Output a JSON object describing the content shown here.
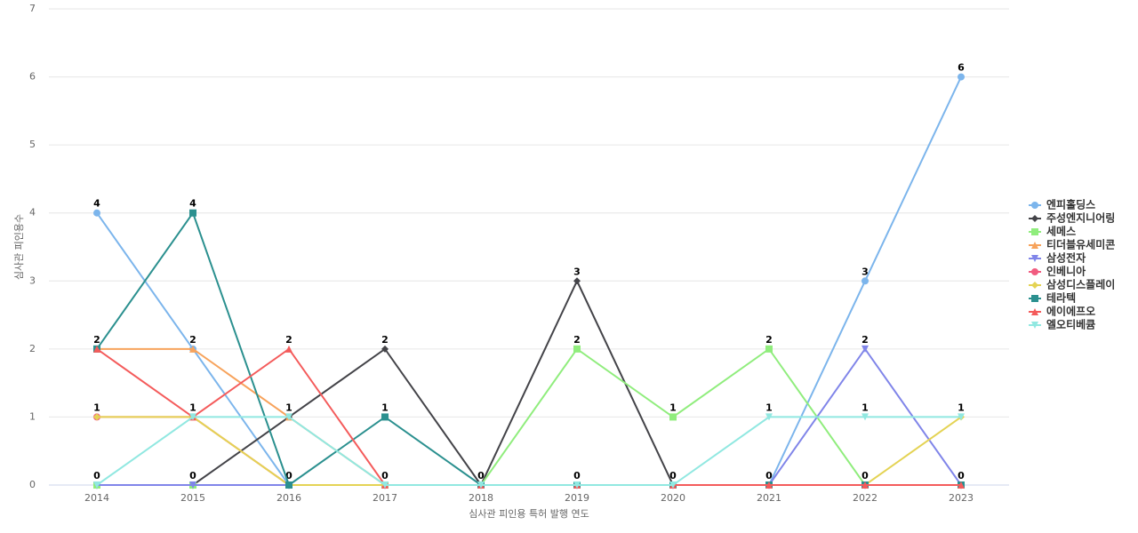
{
  "chart_data": {
    "type": "line",
    "y_axis_label": "심사관 피인용수",
    "x_axis_label": "심사관 피인용 특허 발행 연도",
    "categories": [
      "2014",
      "2015",
      "2016",
      "2017",
      "2018",
      "2019",
      "2020",
      "2021",
      "2022",
      "2023"
    ],
    "ylim": [
      0,
      7
    ],
    "yticks": [
      0,
      1,
      2,
      3,
      4,
      5,
      6,
      7
    ],
    "grid": true,
    "legend": "right",
    "series": [
      {
        "name": "엔피홀딩스",
        "color": "#7cb5ec",
        "symbol": "circle",
        "values": [
          4,
          2,
          0,
          0,
          0,
          0,
          0,
          0,
          3,
          6
        ]
      },
      {
        "name": "주성엔지니어링",
        "color": "#434348",
        "symbol": "diamond",
        "values": [
          0,
          0,
          1,
          2,
          0,
          3,
          0,
          0,
          0,
          0
        ]
      },
      {
        "name": "세메스",
        "color": "#90ed7d",
        "symbol": "square",
        "values": [
          0,
          0,
          0,
          0,
          0,
          2,
          1,
          2,
          0,
          0
        ]
      },
      {
        "name": "티더블유세미콘",
        "color": "#f7a35c",
        "symbol": "triangle",
        "values": [
          2,
          2,
          1,
          0,
          0,
          0,
          0,
          0,
          0,
          0
        ]
      },
      {
        "name": "삼성전자",
        "color": "#8085e9",
        "symbol": "triangle-down",
        "values": [
          0,
          0,
          0,
          0,
          0,
          0,
          0,
          0,
          2,
          0
        ]
      },
      {
        "name": "인베니아",
        "color": "#f15c80",
        "symbol": "circle",
        "values": [
          1,
          1,
          0,
          0,
          0,
          0,
          0,
          0,
          0,
          0
        ]
      },
      {
        "name": "삼성디스플레이",
        "color": "#e4d354",
        "symbol": "diamond",
        "values": [
          1,
          1,
          0,
          0,
          0,
          0,
          0,
          0,
          0,
          1
        ]
      },
      {
        "name": "테라텍",
        "color": "#2b908f",
        "symbol": "square",
        "values": [
          2,
          4,
          0,
          1,
          0,
          0,
          0,
          0,
          0,
          0
        ]
      },
      {
        "name": "에이에프오",
        "color": "#f45b5b",
        "symbol": "triangle",
        "values": [
          2,
          1,
          2,
          0,
          0,
          0,
          0,
          0,
          0,
          0
        ]
      },
      {
        "name": "엘오티베큠",
        "color": "#91e8e1",
        "symbol": "triangle-down",
        "values": [
          0,
          1,
          1,
          0,
          0,
          0,
          0,
          1,
          1,
          1
        ]
      }
    ]
  }
}
